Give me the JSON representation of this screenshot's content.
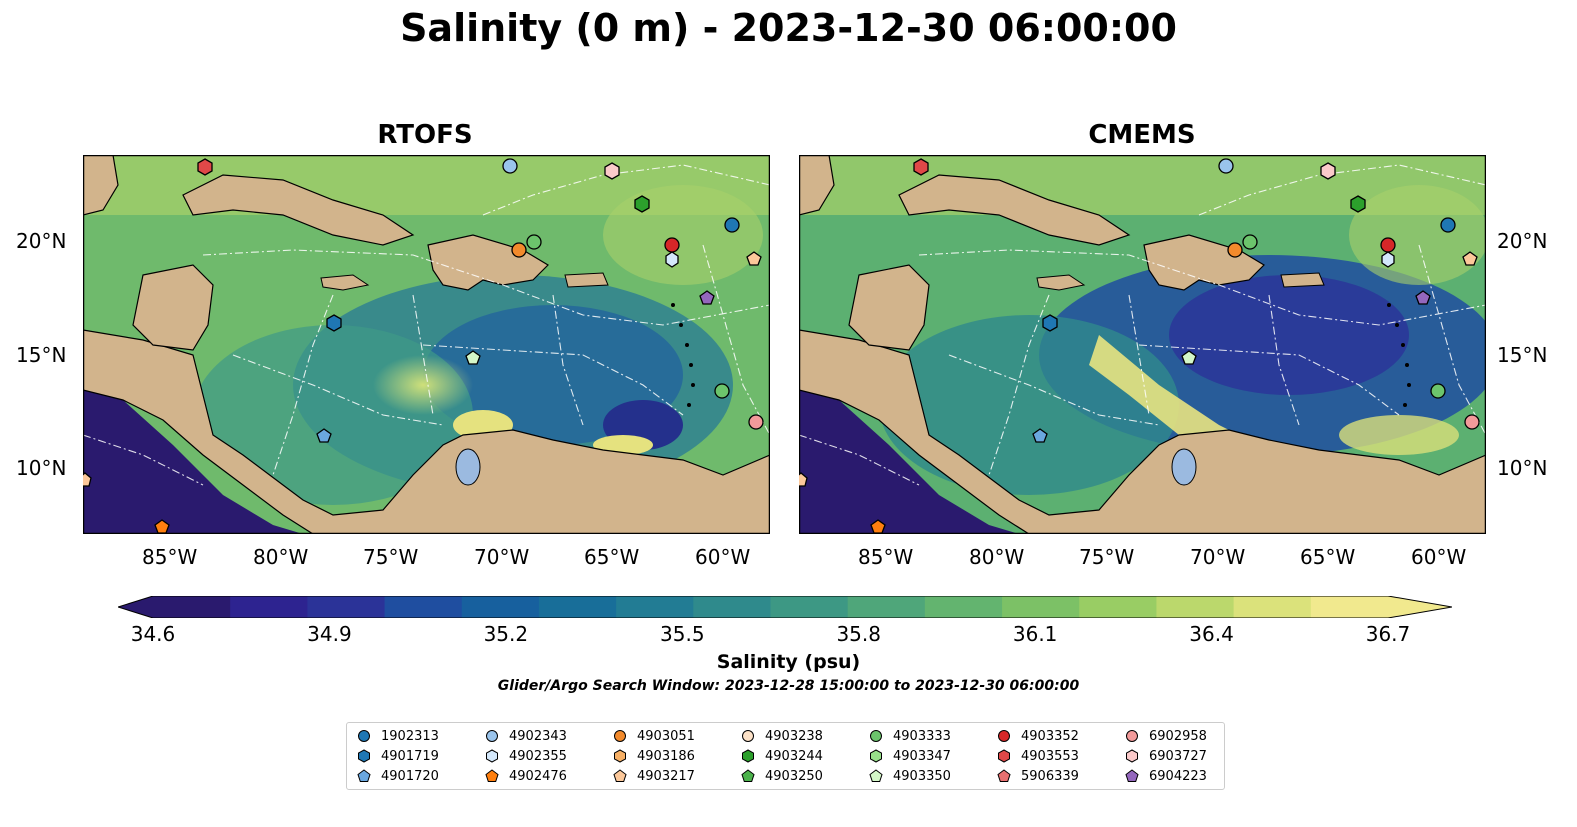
{
  "title": "Salinity (0 m) - 2023-12-30 06:00:00",
  "panels": [
    {
      "title": "RTOFS"
    },
    {
      "title": "CMEMS"
    }
  ],
  "axes": {
    "lon_ticks": [
      "85°W",
      "80°W",
      "75°W",
      "70°W",
      "65°W",
      "60°W"
    ],
    "lat_ticks": [
      "20°N",
      "15°N",
      "10°N"
    ]
  },
  "colorbar": {
    "label": "Salinity (psu)",
    "ticks": [
      "34.6",
      "34.9",
      "35.2",
      "35.5",
      "35.8",
      "36.1",
      "36.4",
      "36.7"
    ],
    "colors": [
      "#2a1a6e",
      "#2d2390",
      "#2b3398",
      "#1f4ea0",
      "#17609e",
      "#186e99",
      "#227c94",
      "#2f8a8c",
      "#3d9884",
      "#4fa67a",
      "#63b46f",
      "#7cc166",
      "#99cd64",
      "#bbd86c",
      "#dbe27b",
      "#f1e98e"
    ]
  },
  "search_window": "Glider/Argo Search Window: 2023-12-28 15:00:00 to 2023-12-30 06:00:00",
  "legend": [
    {
      "id": "1902313",
      "marker": "circle",
      "color": "#1f77b4"
    },
    {
      "id": "4901719",
      "marker": "hexagon",
      "color": "#1f77b4"
    },
    {
      "id": "4901720",
      "marker": "pentagon",
      "color": "#6aa7df"
    },
    {
      "id": "4902343",
      "marker": "circle",
      "color": "#9ac4ec"
    },
    {
      "id": "4902355",
      "marker": "hexagon",
      "color": "#d4e8fb"
    },
    {
      "id": "4902476",
      "marker": "pentagon",
      "color": "#ff7f0e"
    },
    {
      "id": "4903051",
      "marker": "circle",
      "color": "#f28a2c"
    },
    {
      "id": "4903186",
      "marker": "hexagon",
      "color": "#f7b066"
    },
    {
      "id": "4903217",
      "marker": "pentagon",
      "color": "#fcc89a"
    },
    {
      "id": "4903238",
      "marker": "circle",
      "color": "#fde2c8"
    },
    {
      "id": "4903244",
      "marker": "hexagon",
      "color": "#2ca02c"
    },
    {
      "id": "4903250",
      "marker": "pentagon",
      "color": "#4cb34c"
    },
    {
      "id": "4903333",
      "marker": "circle",
      "color": "#6cc46c"
    },
    {
      "id": "4903347",
      "marker": "hexagon",
      "color": "#98df8a"
    },
    {
      "id": "4903350",
      "marker": "pentagon",
      "color": "#d4f7c8"
    },
    {
      "id": "4903352",
      "marker": "circle",
      "color": "#d62728"
    },
    {
      "id": "4903553",
      "marker": "hexagon",
      "color": "#e04848"
    },
    {
      "id": "5906339",
      "marker": "pentagon",
      "color": "#e87070"
    },
    {
      "id": "6902958",
      "marker": "circle",
      "color": "#f29a9a"
    },
    {
      "id": "6903727",
      "marker": "hexagon",
      "color": "#fbcaca"
    },
    {
      "id": "6904223",
      "marker": "pentagon",
      "color": "#9467bd"
    }
  ]
}
